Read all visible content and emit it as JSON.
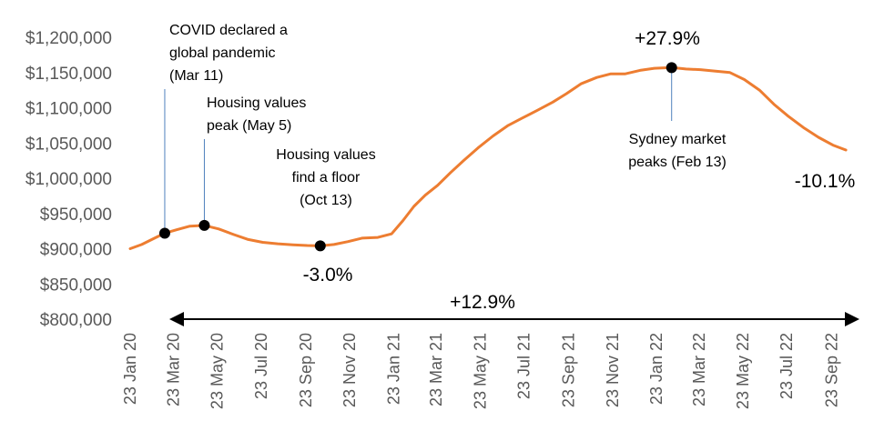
{
  "chart_data": {
    "type": "line",
    "title": "",
    "xlabel": "",
    "ylabel": "",
    "ylim": [
      800000,
      1200000
    ],
    "yticks": [
      "$800,000",
      "$850,000",
      "$900,000",
      "$950,000",
      "$1,000,000",
      "$1,050,000",
      "$1,100,000",
      "$1,150,000",
      "$1,200,000"
    ],
    "ytick_values": [
      800000,
      850000,
      900000,
      950000,
      1000000,
      1050000,
      1100000,
      1150000,
      1200000
    ],
    "xlim": [
      "2020-01-23",
      "2022-10-23"
    ],
    "xticks": [
      "23 Jan 20",
      "23 Mar 20",
      "23 May 20",
      "23 Jul 20",
      "23 Sep 20",
      "23 Nov 20",
      "23 Jan 21",
      "23 Mar 21",
      "23 May 21",
      "23 Jul 21",
      "23 Sep 21",
      "23 Nov 21",
      "23 Jan 22",
      "23 Mar 22",
      "23 May 22",
      "23 Jul 22",
      "23 Sep 22"
    ],
    "xtick_dates": [
      "2020-01-23",
      "2020-03-23",
      "2020-05-23",
      "2020-07-23",
      "2020-09-23",
      "2020-11-23",
      "2021-01-23",
      "2021-03-23",
      "2021-05-23",
      "2021-07-23",
      "2021-09-23",
      "2021-11-23",
      "2022-01-23",
      "2022-03-23",
      "2022-05-23",
      "2022-07-23",
      "2022-09-23"
    ],
    "grid": false,
    "series": [
      {
        "color": "#ED7D31",
        "x": [
          "2020-01-23",
          "2020-02-08",
          "2020-02-24",
          "2020-03-11",
          "2020-03-28",
          "2020-04-15",
          "2020-05-05",
          "2020-05-25",
          "2020-06-15",
          "2020-07-05",
          "2020-07-25",
          "2020-08-15",
          "2020-09-05",
          "2020-09-25",
          "2020-10-13",
          "2020-11-01",
          "2020-11-20",
          "2020-12-10",
          "2021-01-01",
          "2021-01-20",
          "2021-02-05",
          "2021-02-20",
          "2021-03-08",
          "2021-03-25",
          "2021-04-12",
          "2021-04-30",
          "2021-05-20",
          "2021-06-10",
          "2021-07-01",
          "2021-07-20",
          "2021-08-10",
          "2021-09-01",
          "2021-09-20",
          "2021-10-10",
          "2021-11-01",
          "2021-11-20",
          "2021-12-10",
          "2021-12-31",
          "2022-01-20",
          "2022-02-13",
          "2022-03-05",
          "2022-03-25",
          "2022-04-15",
          "2022-05-05",
          "2022-05-25",
          "2022-06-15",
          "2022-07-05",
          "2022-07-25",
          "2022-08-15",
          "2022-09-05",
          "2022-09-25",
          "2022-10-13"
        ],
        "y": [
          900000,
          906000,
          914000,
          922000,
          927000,
          932000,
          933000,
          928000,
          920000,
          913000,
          909000,
          907000,
          905500,
          904500,
          904000,
          906000,
          910000,
          915000,
          916000,
          921000,
          940000,
          960000,
          976000,
          990000,
          1008000,
          1025000,
          1043000,
          1060000,
          1075000,
          1085000,
          1096000,
          1108000,
          1120000,
          1134000,
          1143000,
          1148000,
          1148000,
          1153000,
          1156000,
          1157000,
          1155000,
          1154000,
          1152000,
          1150000,
          1140000,
          1125000,
          1105000,
          1088000,
          1072000,
          1058000,
          1047000,
          1040000
        ]
      }
    ],
    "points": [
      {
        "x": "2020-03-11",
        "y": 922000
      },
      {
        "x": "2020-05-05",
        "y": 933000
      },
      {
        "x": "2020-10-13",
        "y": 904000
      },
      {
        "x": "2022-02-13",
        "y": 1157000
      }
    ],
    "annotations": {
      "covid": [
        "COVID declared a",
        "global pandemic",
        "(Mar 11)"
      ],
      "peak2020": [
        "Housing values",
        "peak (May 5)"
      ],
      "floor": [
        "Housing values",
        "find a floor",
        "(Oct 13)"
      ],
      "sydney": [
        "Sydney market",
        "peaks (Feb 13)"
      ],
      "pct_floor": "-3.0%",
      "pct_peak": "+27.9%",
      "pct_end": "-10.1%",
      "pct_span": "+12.9%"
    }
  }
}
